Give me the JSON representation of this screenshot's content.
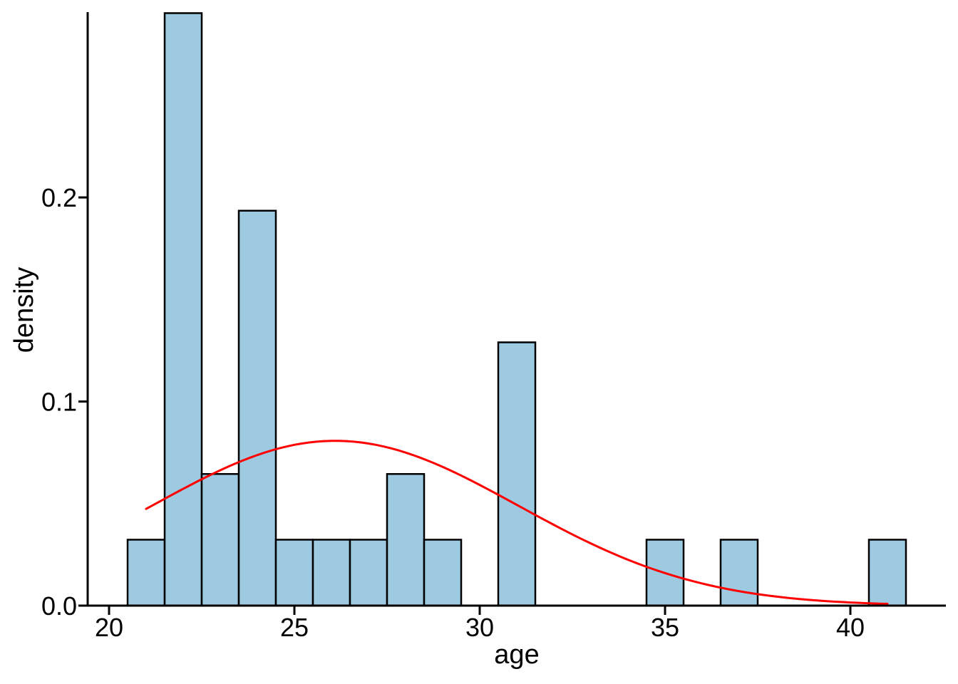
{
  "chart_data": {
    "type": "bar",
    "subtype": "histogram-with-density-curve",
    "title": "",
    "xlabel": "age",
    "ylabel": "density",
    "xlim": [
      19.423,
      42.577
    ],
    "ylim": [
      0,
      0.2908
    ],
    "x_ticks": [
      20,
      25,
      30,
      35,
      40
    ],
    "x_tick_labels": [
      "20",
      "25",
      "30",
      "35",
      "40"
    ],
    "y_ticks": [
      0.0,
      0.1,
      0.2
    ],
    "y_tick_labels": [
      "0.0",
      "0.1",
      "0.2"
    ],
    "grid": false,
    "legend": null,
    "n_observations": 31,
    "bin_width": 1,
    "bars": [
      {
        "x0": 20.5,
        "x1": 21.5,
        "count": 1,
        "density": 0.0323
      },
      {
        "x0": 21.5,
        "x1": 22.5,
        "count": 9,
        "density": 0.2903
      },
      {
        "x0": 22.5,
        "x1": 23.5,
        "count": 2,
        "density": 0.0645
      },
      {
        "x0": 23.5,
        "x1": 24.5,
        "count": 6,
        "density": 0.1935
      },
      {
        "x0": 24.5,
        "x1": 25.5,
        "count": 1,
        "density": 0.0323
      },
      {
        "x0": 25.5,
        "x1": 26.5,
        "count": 1,
        "density": 0.0323
      },
      {
        "x0": 26.5,
        "x1": 27.5,
        "count": 1,
        "density": 0.0323
      },
      {
        "x0": 27.5,
        "x1": 28.5,
        "count": 2,
        "density": 0.0645
      },
      {
        "x0": 28.5,
        "x1": 29.5,
        "count": 1,
        "density": 0.0323
      },
      {
        "x0": 30.5,
        "x1": 31.5,
        "count": 4,
        "density": 0.129
      },
      {
        "x0": 34.5,
        "x1": 35.5,
        "count": 1,
        "density": 0.0323
      },
      {
        "x0": 36.5,
        "x1": 37.5,
        "count": 1,
        "density": 0.0323
      },
      {
        "x0": 40.5,
        "x1": 41.5,
        "count": 1,
        "density": 0.0323
      }
    ],
    "curve": {
      "type": "normal-pdf",
      "mean": 26.1,
      "sd": 4.94,
      "x_start": 21,
      "x_end": 41,
      "peak_density": 0.0808
    },
    "colors": {
      "bar_fill": "#9ECAE1",
      "bar_edge": "#000000",
      "axis": "#000000",
      "text": "#000000",
      "curve": "#FF0000"
    }
  }
}
